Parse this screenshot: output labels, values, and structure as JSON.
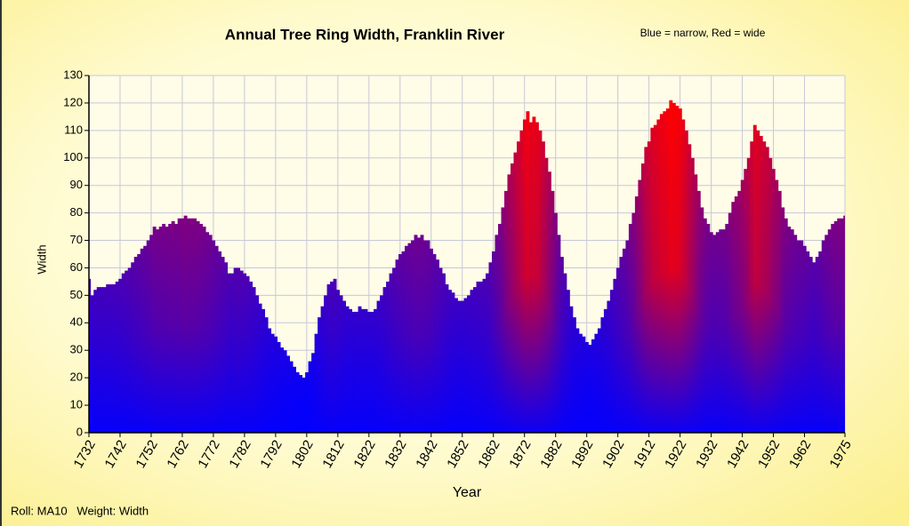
{
  "chart_data": {
    "type": "bar",
    "title": "Annual Tree Ring Width, Franklin River",
    "annotation": "Blue = narrow, Red = wide",
    "footer": "Roll: MA10   Weight: Width",
    "x_label": "Year",
    "y_label": "Width",
    "low_color": "#0000ff",
    "high_color": "#ff0000",
    "grid": true,
    "xlim": [
      1732,
      1975
    ],
    "ylim": [
      0,
      130
    ],
    "yticks": [
      0,
      10,
      20,
      30,
      40,
      50,
      60,
      70,
      80,
      90,
      100,
      110,
      120,
      130
    ],
    "xticks": [
      1732,
      1742,
      1752,
      1762,
      1772,
      1782,
      1792,
      1802,
      1812,
      1822,
      1832,
      1842,
      1852,
      1862,
      1872,
      1882,
      1892,
      1902,
      1912,
      1922,
      1932,
      1942,
      1952,
      1962,
      1975
    ],
    "x": [
      1732,
      1733,
      1734,
      1735,
      1736,
      1737,
      1738,
      1739,
      1740,
      1741,
      1742,
      1743,
      1744,
      1745,
      1746,
      1747,
      1748,
      1749,
      1750,
      1751,
      1752,
      1753,
      1754,
      1755,
      1756,
      1757,
      1758,
      1759,
      1760,
      1761,
      1762,
      1763,
      1764,
      1765,
      1766,
      1767,
      1768,
      1769,
      1770,
      1771,
      1772,
      1773,
      1774,
      1775,
      1776,
      1777,
      1778,
      1779,
      1780,
      1781,
      1782,
      1783,
      1784,
      1785,
      1786,
      1787,
      1788,
      1789,
      1790,
      1791,
      1792,
      1793,
      1794,
      1795,
      1796,
      1797,
      1798,
      1799,
      1800,
      1801,
      1802,
      1803,
      1804,
      1805,
      1806,
      1807,
      1808,
      1809,
      1810,
      1811,
      1812,
      1813,
      1814,
      1815,
      1816,
      1817,
      1818,
      1819,
      1820,
      1821,
      1822,
      1823,
      1824,
      1825,
      1826,
      1827,
      1828,
      1829,
      1830,
      1831,
      1832,
      1833,
      1834,
      1835,
      1836,
      1837,
      1838,
      1839,
      1840,
      1841,
      1842,
      1843,
      1844,
      1845,
      1846,
      1847,
      1848,
      1849,
      1850,
      1851,
      1852,
      1853,
      1854,
      1855,
      1856,
      1857,
      1858,
      1859,
      1860,
      1861,
      1862,
      1863,
      1864,
      1865,
      1866,
      1867,
      1868,
      1869,
      1870,
      1871,
      1872,
      1873,
      1874,
      1875,
      1876,
      1877,
      1878,
      1879,
      1880,
      1881,
      1882,
      1883,
      1884,
      1885,
      1886,
      1887,
      1888,
      1889,
      1890,
      1891,
      1892,
      1893,
      1894,
      1895,
      1896,
      1897,
      1898,
      1899,
      1900,
      1901,
      1902,
      1903,
      1904,
      1905,
      1906,
      1907,
      1908,
      1909,
      1910,
      1911,
      1912,
      1913,
      1914,
      1915,
      1916,
      1917,
      1918,
      1919,
      1920,
      1921,
      1922,
      1923,
      1924,
      1925,
      1926,
      1927,
      1928,
      1929,
      1930,
      1931,
      1932,
      1933,
      1934,
      1935,
      1936,
      1937,
      1938,
      1939,
      1940,
      1941,
      1942,
      1943,
      1944,
      1945,
      1946,
      1947,
      1948,
      1949,
      1950,
      1951,
      1952,
      1953,
      1954,
      1955,
      1956,
      1957,
      1958,
      1959,
      1960,
      1961,
      1962,
      1963,
      1964,
      1965,
      1966,
      1967,
      1968,
      1969,
      1970,
      1971,
      1972,
      1973,
      1974,
      1975
    ],
    "values": [
      56,
      50,
      52,
      53,
      53,
      53,
      54,
      54,
      54,
      55,
      56,
      58,
      59,
      60,
      62,
      64,
      65,
      67,
      68,
      70,
      72,
      75,
      74,
      75,
      76,
      75,
      76,
      77,
      76,
      78,
      78,
      79,
      78,
      78,
      78,
      77,
      76,
      75,
      73,
      72,
      70,
      68,
      66,
      64,
      62,
      58,
      58,
      60,
      60,
      59,
      58,
      57,
      55,
      53,
      50,
      47,
      45,
      42,
      38,
      36,
      35,
      33,
      31,
      30,
      28,
      26,
      24,
      22,
      21,
      20,
      22,
      26,
      29,
      36,
      42,
      46,
      50,
      54,
      55,
      56,
      52,
      50,
      48,
      46,
      45,
      44,
      44,
      46,
      45,
      45,
      44,
      44,
      45,
      48,
      50,
      53,
      55,
      58,
      60,
      63,
      65,
      66,
      68,
      69,
      70,
      72,
      71,
      72,
      70,
      70,
      67,
      65,
      63,
      60,
      58,
      54,
      52,
      51,
      49,
      48,
      48,
      49,
      50,
      52,
      53,
      55,
      55,
      56,
      58,
      62,
      66,
      72,
      76,
      82,
      88,
      94,
      98,
      102,
      106,
      110,
      114,
      117,
      113,
      115,
      113,
      110,
      106,
      100,
      95,
      88,
      80,
      72,
      64,
      58,
      52,
      46,
      42,
      38,
      36,
      35,
      33,
      32,
      34,
      36,
      38,
      42,
      45,
      48,
      52,
      56,
      60,
      64,
      67,
      70,
      76,
      80,
      86,
      92,
      98,
      104,
      106,
      111,
      112,
      114,
      116,
      117,
      118,
      121,
      120,
      119,
      118,
      114,
      110,
      105,
      100,
      94,
      88,
      82,
      78,
      76,
      73,
      72,
      73,
      74,
      74,
      76,
      80,
      84,
      86,
      88,
      92,
      96,
      100,
      106,
      112,
      110,
      108,
      106,
      104,
      100,
      96,
      92,
      88,
      82,
      78,
      75,
      74,
      72,
      70,
      70,
      68,
      66,
      64,
      62,
      64,
      66,
      70,
      72,
      74,
      76,
      77,
      78,
      78,
      79
    ]
  }
}
